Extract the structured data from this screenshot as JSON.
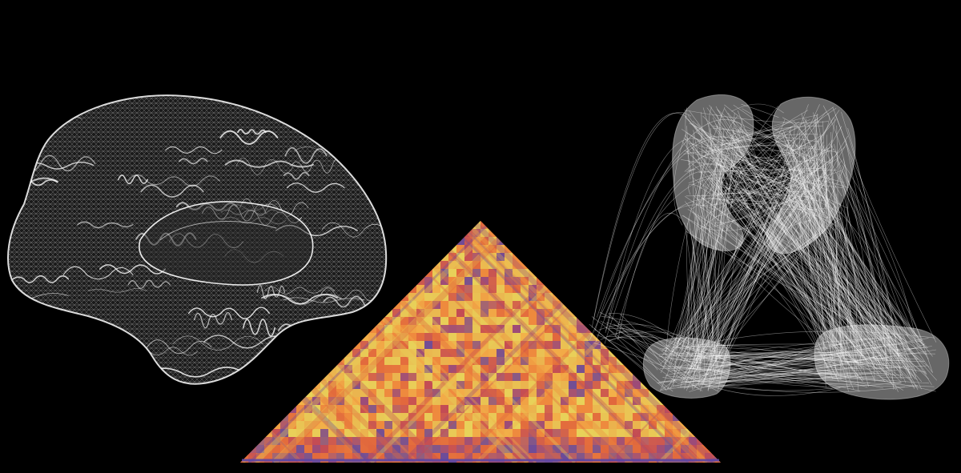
{
  "canvas": {
    "background": "#000000"
  },
  "brain_mesh": {
    "icon": "brain-wireframe-icon",
    "stroke_color": "#ffffff",
    "fill_color": "#1a1a1a"
  },
  "connectivity_matrix": {
    "icon": "triangular-heatmap-icon",
    "palette": [
      "#e8d25a",
      "#f2b24a",
      "#ee8a3e",
      "#e0663d",
      "#c24a55",
      "#9a4a7a",
      "#6a4a9a"
    ],
    "diagonal_color": "#5a46a8"
  },
  "connectome_graph": {
    "icon": "network-graph-icon",
    "node_color": "#bcbcbc",
    "edge_color": "#ffffff"
  }
}
